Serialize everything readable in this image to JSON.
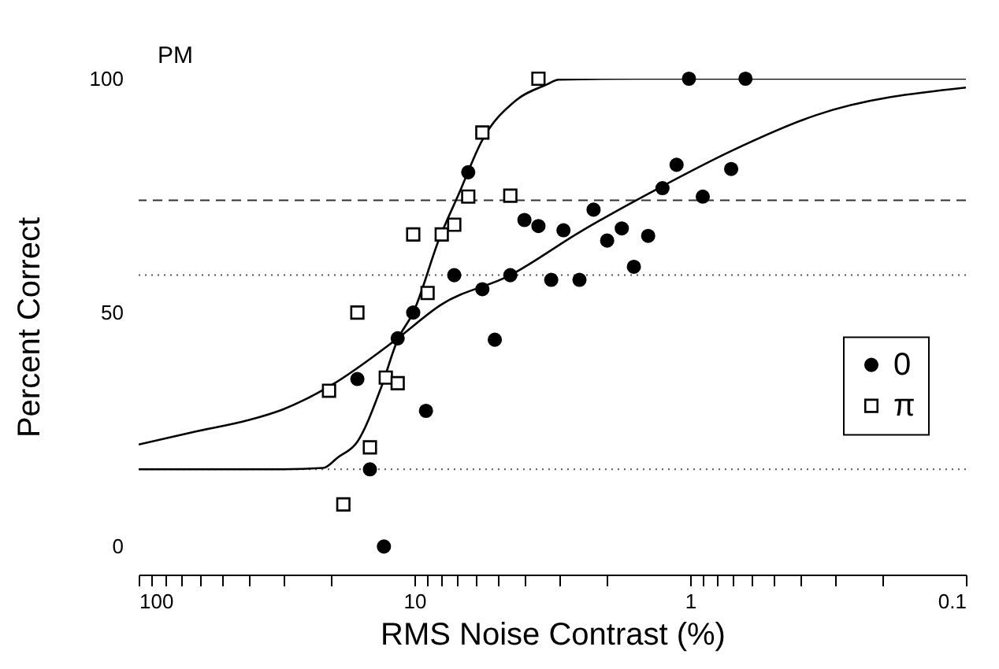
{
  "chart_data": {
    "type": "scatter",
    "annotations": [
      "PM"
    ],
    "xlabel": "RMS Noise Contrast (%)",
    "ylabel": "Percent Correct",
    "log": "x",
    "xlim": [
      100,
      0.1
    ],
    "ylim": [
      -6,
      100
    ],
    "xticks": [
      100,
      {
        "value": 90,
        "label": null
      },
      {
        "value": 80,
        "label": null
      },
      {
        "value": 70,
        "label": null
      },
      {
        "value": 60,
        "label": null
      },
      {
        "value": 50,
        "label": null
      },
      {
        "value": 40,
        "label": null
      },
      {
        "value": 30,
        "label": null
      },
      {
        "value": 20,
        "label": null
      },
      10,
      {
        "value": 9,
        "label": null
      },
      {
        "value": 8,
        "label": null
      },
      {
        "value": 7,
        "label": null
      },
      {
        "value": 6,
        "label": null
      },
      {
        "value": 5,
        "label": null
      },
      {
        "value": 4,
        "label": null
      },
      {
        "value": 3,
        "label": null
      },
      {
        "value": 2,
        "label": null
      },
      1,
      {
        "value": 0.9,
        "label": null
      },
      {
        "value": 0.8,
        "label": null
      },
      {
        "value": 0.7,
        "label": null
      },
      {
        "value": 0.6,
        "label": null
      },
      {
        "value": 0.5,
        "label": null
      },
      {
        "value": 0.4,
        "label": null
      },
      {
        "value": 0.3,
        "label": null
      },
      {
        "value": 0.2,
        "label": null
      },
      0.1
    ],
    "yticks": [
      0,
      50,
      100
    ],
    "grid": false,
    "legend": "right",
    "series": [
      {
        "name": "0",
        "type": "scatter",
        "marker": "circle",
        "color": "#000000",
        "x": [
          1.01,
          0.63,
          1.12,
          0.71,
          1.26,
          0.9,
          2.24,
          3.99,
          3.55,
          2.88,
          1.77,
          2.0,
          1.42,
          1.6,
          4.49,
          3.19,
          2.52,
          6.38,
          7.17,
          5.67,
          10.1,
          11.5,
          5.11,
          16.1,
          9.08,
          14.5,
          12.9
        ],
        "values": [
          100,
          100,
          81.6,
          80.7,
          76.6,
          74.8,
          72,
          69.8,
          68.5,
          67.6,
          68,
          65.4,
          66.4,
          59.8,
          58,
          57,
          57,
          80,
          58,
          55,
          50,
          44.5,
          44.2,
          35.8,
          29,
          16.5,
          0
        ]
      },
      {
        "name": "π",
        "type": "scatter",
        "marker": "square",
        "color": "#000000",
        "x": [
          3.55,
          5.67,
          6.38,
          4.49,
          7.17,
          7.96,
          10.1,
          8.96,
          16.1,
          12.7,
          11.5,
          20.4,
          14.5,
          18.1
        ],
        "values": [
          100,
          88.5,
          74.8,
          75,
          68.8,
          66.7,
          66.7,
          54.2,
          50,
          36.1,
          34.9,
          33.3,
          21.2,
          9
        ]
      },
      {
        "type": "line",
        "color": "#000000",
        "line_style": "solid",
        "x": [
          100,
          63,
          40,
          30,
          20,
          11.5,
          8,
          4.49,
          2.5,
          1.3,
          0.7,
          0.35,
          0.1
        ],
        "values": [
          21.8,
          24.5,
          27,
          29.3,
          34.5,
          44.5,
          51.7,
          58,
          67.3,
          76.6,
          84.7,
          92.2,
          98.1
        ]
      },
      {
        "type": "line",
        "color": "#000000",
        "line_style": "solid",
        "x": [
          100,
          30,
          21.4,
          19,
          16.1,
          13.2,
          11.5,
          10.1,
          8.1,
          6.9,
          5.67,
          4.3,
          3.3,
          3.0,
          1.5,
          0.1
        ],
        "values": [
          16.5,
          16.5,
          16.8,
          19,
          22.4,
          34,
          44.2,
          50,
          66,
          75.4,
          86.9,
          95.3,
          98.8,
          99.8,
          100,
          100
        ]
      }
    ],
    "ref_lines": [
      {
        "axis": "y",
        "value": 74,
        "color": "#333333",
        "line_style": "dashed"
      },
      {
        "axis": "y",
        "value": 58,
        "color": "#555555",
        "line_style": "dotted"
      },
      {
        "axis": "y",
        "value": 16.5,
        "color": "#555555",
        "line_style": "dotted"
      }
    ]
  }
}
